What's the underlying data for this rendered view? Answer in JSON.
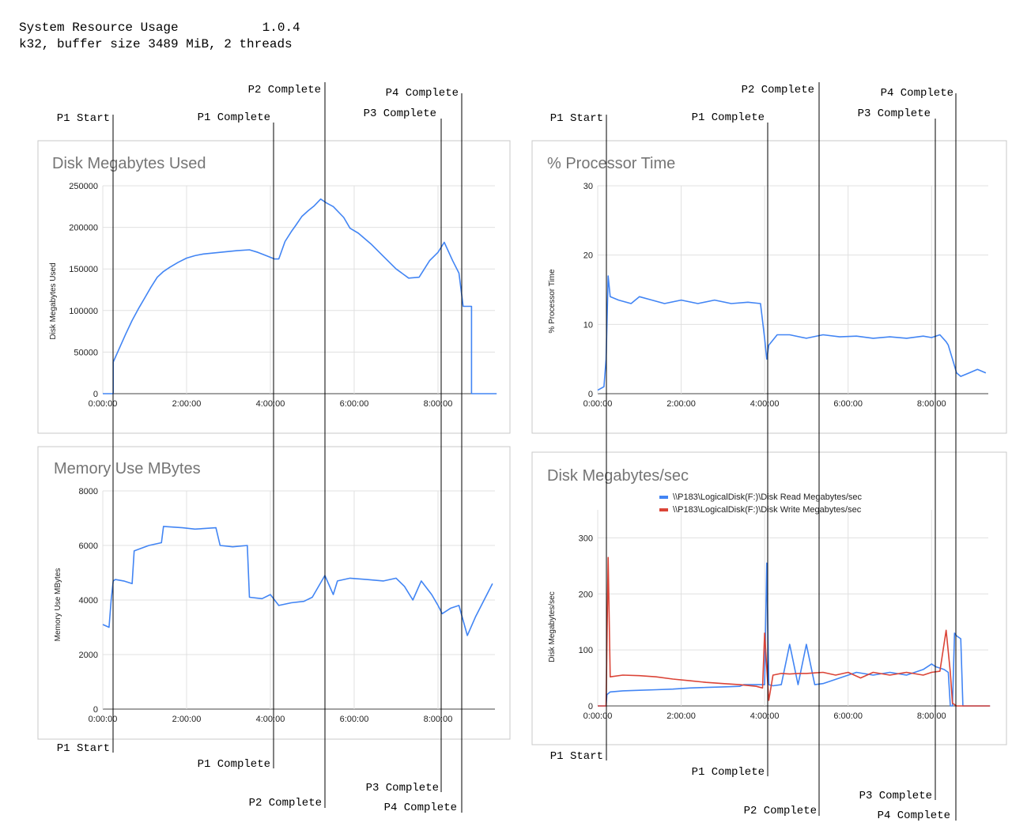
{
  "header": {
    "title": "System Resource Usage",
    "version": "1.0.4",
    "subtitle": "k32, buffer size 3489 MiB, 2 threads"
  },
  "phase_labels": {
    "p1_start": "P1 Start",
    "p1_complete": "P1 Complete",
    "p2_complete": "P2 Complete",
    "p3_complete": "P3 Complete",
    "p4_complete": "P4 Complete"
  },
  "colors": {
    "read": "#4285f4",
    "write": "#db4437",
    "grid": "#e0e0e0",
    "frame": "#c8c8c8",
    "title": "#757575"
  },
  "chart_data": [
    {
      "type": "line",
      "title": "Disk Megabytes Used",
      "ylabel": "Disk Megabytes Used",
      "xlabel": "",
      "ylim": [
        0,
        250000
      ],
      "yticks": [
        "250000",
        "200000",
        "150000",
        "100000",
        "50000",
        "0"
      ],
      "xticks": [
        "0:00:00",
        "2:00:00",
        "4:00:00",
        "6:00:00",
        "8:00:00"
      ],
      "x_unit": "hours",
      "series": [
        {
          "x": [
            0,
            0.25,
            0.25,
            0.4,
            0.55,
            0.7,
            0.85,
            1.0,
            1.15,
            1.3,
            1.45,
            1.6,
            1.8,
            2.0,
            2.2,
            2.4,
            2.8,
            3.2,
            3.5,
            3.7,
            3.9,
            4.1,
            4.2,
            4.35,
            4.5,
            4.6,
            4.75,
            4.9,
            5.05,
            5.2,
            5.35,
            5.5,
            5.75,
            5.9,
            6.1,
            6.4,
            6.7,
            7.0,
            7.3,
            7.55,
            7.8,
            8.0,
            8.15,
            8.25,
            8.35,
            8.5,
            8.6,
            8.6,
            8.8,
            8.8,
            9.4
          ],
          "values": [
            0,
            0,
            38000,
            55000,
            72000,
            88000,
            102000,
            115000,
            128000,
            140000,
            147000,
            152000,
            158000,
            163000,
            166000,
            168000,
            170000,
            172000,
            173000,
            170000,
            166000,
            162000,
            162000,
            183000,
            195000,
            202000,
            213000,
            220000,
            226000,
            234000,
            229000,
            225000,
            212000,
            199000,
            193000,
            180000,
            165000,
            150000,
            139000,
            140000,
            160000,
            170000,
            182000,
            171000,
            160000,
            145000,
            105000,
            105000,
            105000,
            0,
            0
          ]
        }
      ]
    },
    {
      "type": "line",
      "title": "% Processor Time",
      "ylabel": "% Processor Time",
      "xlabel": "",
      "ylim": [
        0,
        30
      ],
      "yticks": [
        "30",
        "20",
        "10",
        "0"
      ],
      "xticks": [
        "0:00:00",
        "2:00:00",
        "4:00:00",
        "6:00:00",
        "8:00:00"
      ],
      "x_unit": "hours",
      "series": [
        {
          "x": [
            0,
            0.15,
            0.2,
            0.25,
            0.3,
            0.5,
            0.8,
            1.0,
            1.3,
            1.6,
            2.0,
            2.4,
            2.8,
            3.2,
            3.6,
            3.9,
            4.0,
            4.05,
            4.1,
            4.3,
            4.6,
            5.0,
            5.4,
            5.8,
            6.2,
            6.6,
            7.0,
            7.4,
            7.8,
            8.0,
            8.2,
            8.35,
            8.4,
            8.5,
            8.6,
            8.7,
            8.9,
            9.1,
            9.3
          ],
          "values": [
            0.5,
            1,
            5,
            17,
            14,
            13.5,
            13,
            14,
            13.5,
            13,
            13.5,
            13,
            13.5,
            13,
            13.2,
            13,
            8,
            5,
            7,
            8.5,
            8.5,
            8,
            8.5,
            8.2,
            8.3,
            8,
            8.2,
            8,
            8.3,
            8.1,
            8.5,
            7.5,
            7,
            5,
            3,
            2.5,
            3,
            3.5,
            3
          ]
        }
      ]
    },
    {
      "type": "line",
      "title": "Memory Use MBytes",
      "ylabel": "Memory Use MBytes",
      "xlabel": "",
      "ylim": [
        0,
        8000
      ],
      "yticks": [
        "8000",
        "6000",
        "4000",
        "2000",
        "0"
      ],
      "xticks": [
        "0:00:00",
        "2:00:00",
        "4:00:00",
        "6:00:00",
        "8:00:00"
      ],
      "x_unit": "hours",
      "series": [
        {
          "x": [
            0,
            0.15,
            0.2,
            0.25,
            0.3,
            0.5,
            0.7,
            0.75,
            1.1,
            1.4,
            1.45,
            1.9,
            2.2,
            2.7,
            2.8,
            3.1,
            3.45,
            3.5,
            3.8,
            4.0,
            4.2,
            4.5,
            4.8,
            5.0,
            5.3,
            5.5,
            5.6,
            5.9,
            6.3,
            6.7,
            7.0,
            7.2,
            7.4,
            7.6,
            7.85,
            8.0,
            8.1,
            8.3,
            8.5,
            8.7,
            8.9,
            9.1,
            9.3
          ],
          "values": [
            3100,
            3000,
            4000,
            4700,
            4750,
            4700,
            4600,
            5800,
            6000,
            6100,
            6700,
            6650,
            6600,
            6650,
            6000,
            5950,
            6000,
            4100,
            4050,
            4200,
            3800,
            3900,
            3950,
            4100,
            4900,
            4200,
            4700,
            4800,
            4750,
            4700,
            4800,
            4500,
            4000,
            4700,
            4200,
            3800,
            3500,
            3700,
            3800,
            2700,
            3400,
            4000,
            4600
          ]
        }
      ]
    },
    {
      "type": "line",
      "title": "Disk Megabytes/sec",
      "ylabel": "Disk Megabytes/sec",
      "xlabel": "",
      "ylim": [
        0,
        350
      ],
      "yticks": [
        "300",
        "200",
        "100",
        "0"
      ],
      "xticks": [
        "0:00:00",
        "2:00:00",
        "4:00:00",
        "6:00:00",
        "8:00:00"
      ],
      "x_unit": "hours",
      "legend_position": "top",
      "series": [
        {
          "name": "\\\\P183\\LogicalDisk(F:)\\Disk Read Megabytes/sec",
          "x": [
            0,
            0.2,
            0.22,
            0.3,
            0.6,
            1.0,
            1.4,
            1.8,
            2.2,
            2.6,
            3.0,
            3.4,
            3.5,
            3.8,
            3.9,
            4.0,
            4.05,
            4.1,
            4.2,
            4.4,
            4.6,
            4.8,
            5.0,
            5.2,
            5.4,
            5.8,
            6.2,
            6.6,
            7.0,
            7.4,
            7.8,
            8.0,
            8.1,
            8.3,
            8.4,
            8.45,
            8.5,
            8.55,
            8.6,
            8.7,
            8.75,
            9.4
          ],
          "values": [
            0,
            0,
            20,
            25,
            27,
            28,
            29,
            30,
            32,
            33,
            34,
            35,
            38,
            38,
            38,
            38,
            255,
            38,
            36,
            38,
            110,
            38,
            110,
            38,
            40,
            50,
            60,
            55,
            60,
            55,
            65,
            75,
            70,
            65,
            60,
            0,
            0,
            130,
            125,
            120,
            0,
            0
          ]
        },
        {
          "name": "\\\\P183\\LogicalDisk(F:)\\Disk Write Megabytes/sec",
          "x": [
            0,
            0.2,
            0.25,
            0.3,
            0.6,
            1.0,
            1.4,
            1.8,
            2.2,
            2.6,
            3.0,
            3.4,
            3.8,
            3.95,
            4.0,
            4.1,
            4.2,
            4.4,
            4.6,
            4.8,
            5.0,
            5.2,
            5.4,
            5.7,
            6.0,
            6.3,
            6.6,
            7.0,
            7.4,
            7.8,
            8.0,
            8.2,
            8.35,
            8.45,
            8.5,
            8.6,
            9.4
          ],
          "values": [
            0,
            0,
            265,
            52,
            55,
            54,
            52,
            48,
            45,
            42,
            40,
            38,
            35,
            32,
            130,
            10,
            55,
            58,
            57,
            58,
            58,
            59,
            60,
            55,
            60,
            50,
            60,
            55,
            60,
            55,
            60,
            62,
            135,
            60,
            5,
            0,
            0
          ]
        }
      ]
    }
  ]
}
